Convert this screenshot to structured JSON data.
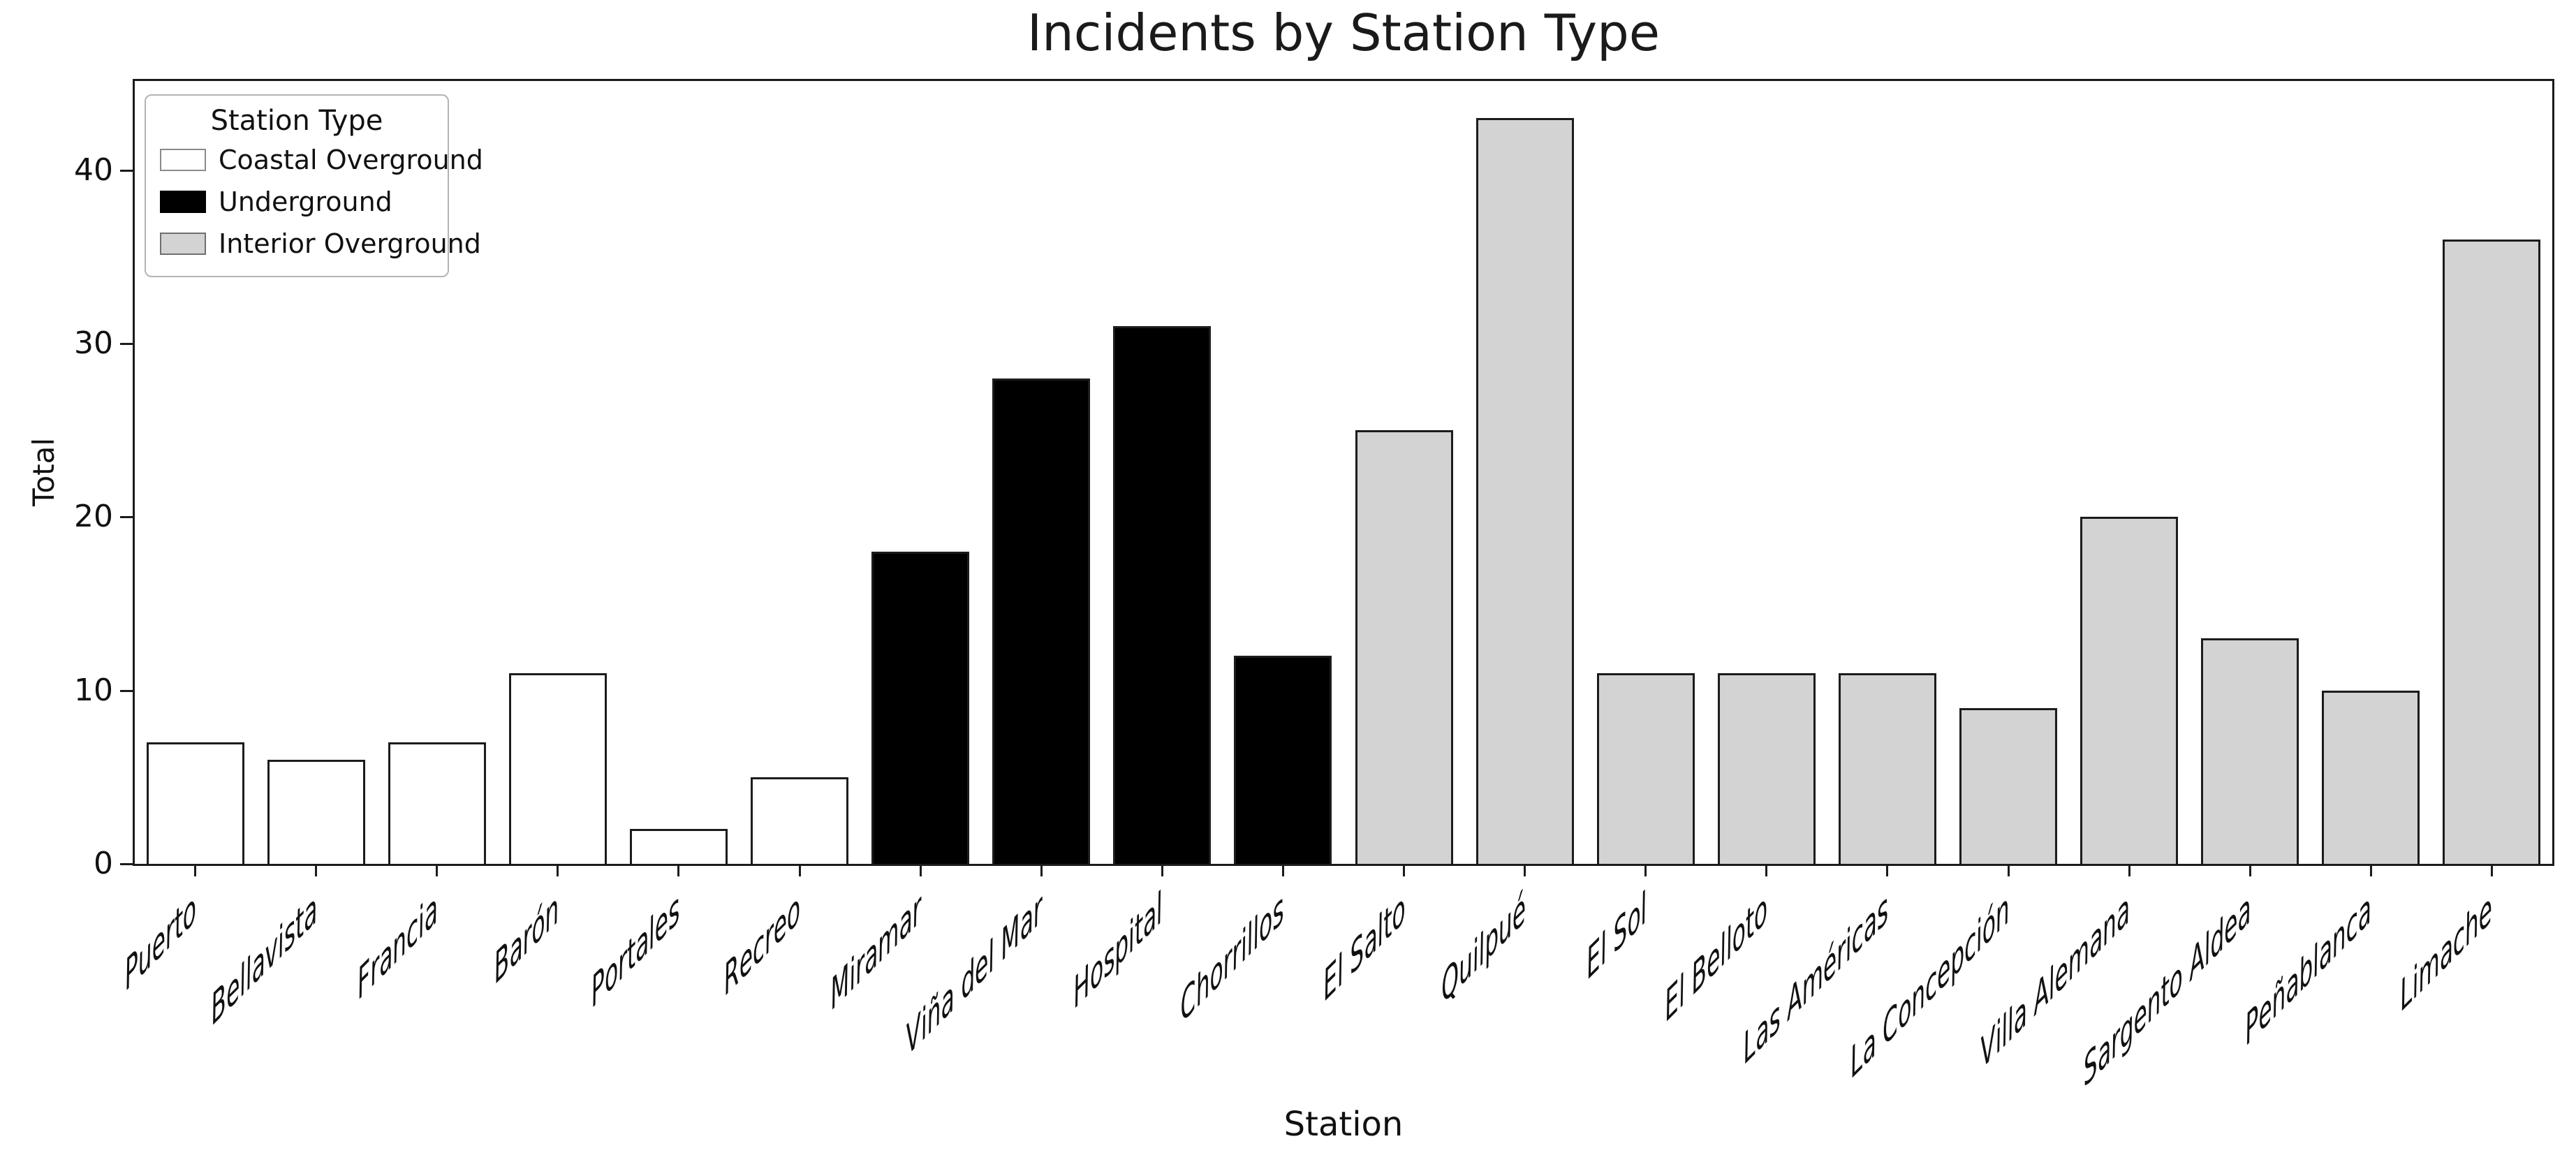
{
  "chart_data": {
    "type": "bar",
    "title": "Incidents by Station Type",
    "xlabel": "Station",
    "ylabel": "Total",
    "ylim": [
      0,
      45.15
    ],
    "yticks": [
      0,
      10,
      20,
      30,
      40
    ],
    "grid": false,
    "legend": {
      "title": "Station Type",
      "position": "upper left",
      "items": [
        {
          "label": "Coastal Overground",
          "color": "#ffffff",
          "edge": "#8a8a8a"
        },
        {
          "label": "Underground",
          "color": "#000000",
          "edge": "#000000"
        },
        {
          "label": "Interior Overground",
          "color": "#d3d3d3",
          "edge": "#6f6f6f"
        }
      ]
    },
    "categories": [
      "Puerto",
      "Bellavista",
      "Francia",
      "Barón",
      "Portales",
      "Recreo",
      "Miramar",
      "Viña del Mar",
      "Hospital",
      "Chorrillos",
      "El Salto",
      "Quilpué",
      "El Sol",
      "El Belloto",
      "Las Américas",
      "La Concepción",
      "Villa Alemana",
      "Sargento Aldea",
      "Peñablanca",
      "Limache"
    ],
    "values": [
      7,
      6,
      7,
      11,
      2,
      5,
      18,
      28,
      31,
      12,
      25,
      43,
      11,
      11,
      11,
      9,
      20,
      13,
      10,
      36
    ],
    "groups": [
      "Coastal Overground",
      "Coastal Overground",
      "Coastal Overground",
      "Coastal Overground",
      "Coastal Overground",
      "Coastal Overground",
      "Underground",
      "Underground",
      "Underground",
      "Underground",
      "Interior Overground",
      "Interior Overground",
      "Interior Overground",
      "Interior Overground",
      "Interior Overground",
      "Interior Overground",
      "Interior Overground",
      "Interior Overground",
      "Interior Overground",
      "Interior Overground"
    ],
    "group_colors": {
      "Coastal Overground": "#ffffff",
      "Underground": "#000000",
      "Interior Overground": "#d3d3d3"
    },
    "bar_edge_color": "#1c1c1c"
  }
}
